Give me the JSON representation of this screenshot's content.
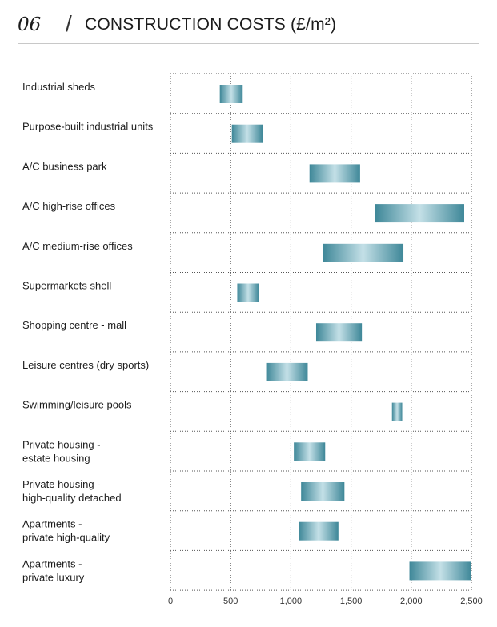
{
  "header": {
    "number": "06",
    "separator": "/",
    "title": "CONSTRUCTION COSTS (£/m²)"
  },
  "chart_data": {
    "type": "bar",
    "orientation": "horizontal-range",
    "title": "CONSTRUCTION COSTS (£/m²)",
    "xlim": [
      0,
      2500
    ],
    "xticks": [
      0,
      500,
      1000,
      1500,
      2000,
      2500
    ],
    "xtick_labels": [
      "0",
      "500",
      "1,000",
      "1,500",
      "2,000",
      "2,500"
    ],
    "grid": "dotted",
    "colors": {
      "bar_dark": "#3e8798",
      "bar_light": "#c4e0e7",
      "grid": "#555555"
    },
    "categories": [
      {
        "lines": [
          "Industrial sheds"
        ],
        "low": 410,
        "high": 600
      },
      {
        "lines": [
          "Purpose-built industrial units"
        ],
        "low": 510,
        "high": 765
      },
      {
        "lines": [
          "A/C business park"
        ],
        "low": 1155,
        "high": 1575
      },
      {
        "lines": [
          "A/C high-rise offices"
        ],
        "low": 1700,
        "high": 2440
      },
      {
        "lines": [
          "A/C medium-rise offices"
        ],
        "low": 1265,
        "high": 1935
      },
      {
        "lines": [
          "Supermarkets shell"
        ],
        "low": 555,
        "high": 735
      },
      {
        "lines": [
          "Shopping centre - mall"
        ],
        "low": 1210,
        "high": 1590
      },
      {
        "lines": [
          "Leisure centres (dry sports)"
        ],
        "low": 795,
        "high": 1140
      },
      {
        "lines": [
          "Swimming/leisure pools"
        ],
        "low": 1840,
        "high": 1925
      },
      {
        "lines": [
          "Private housing -",
          "estate housing"
        ],
        "low": 1025,
        "high": 1285
      },
      {
        "lines": [
          "Private housing -",
          "high-quality detached"
        ],
        "low": 1085,
        "high": 1445
      },
      {
        "lines": [
          "Apartments -",
          "private high-quality"
        ],
        "low": 1065,
        "high": 1395
      },
      {
        "lines": [
          "Apartments -",
          "private luxury"
        ],
        "low": 1985,
        "high": 2500
      }
    ]
  }
}
